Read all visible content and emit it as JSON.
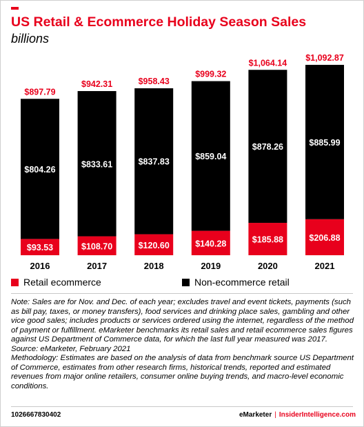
{
  "header": {
    "title": "US Retail & Ecommerce Holiday Season Sales",
    "subtitle": "billions"
  },
  "colors": {
    "accent": "#e8001c",
    "non_ecommerce": "#000000"
  },
  "chart_data": {
    "type": "bar",
    "stacked": true,
    "title": "US Retail & Ecommerce Holiday Season Sales",
    "ylabel": "billions",
    "categories": [
      "2016",
      "2017",
      "2018",
      "2019",
      "2020",
      "2021"
    ],
    "series": [
      {
        "name": "Retail ecommerce",
        "color": "#e8001c",
        "values": [
          93.53,
          108.7,
          120.6,
          140.28,
          185.88,
          206.88
        ],
        "labels": [
          "$93.53",
          "$108.70",
          "$120.60",
          "$140.28",
          "$185.88",
          "$206.88"
        ]
      },
      {
        "name": "Non-ecommerce retail",
        "color": "#000000",
        "values": [
          804.26,
          833.61,
          837.83,
          859.04,
          878.26,
          885.99
        ],
        "labels": [
          "$804.26",
          "$833.61",
          "$837.83",
          "$859.04",
          "$878.26",
          "$885.99"
        ]
      }
    ],
    "totals": [
      897.79,
      942.31,
      958.43,
      999.32,
      1064.14,
      1092.87
    ],
    "total_labels": [
      "$897.79",
      "$942.31",
      "$958.43",
      "$999.32",
      "$1,064.14",
      "$1,092.87"
    ],
    "ylim": [
      0,
      1092.87
    ],
    "grid": false,
    "legend_position": "bottom-left"
  },
  "legend": {
    "items": [
      "Retail ecommerce",
      "Non-ecommerce retail"
    ]
  },
  "notes": {
    "note": "Note: Sales are for Nov. and Dec. of each year; excludes travel and event tickets, payments (such as bill pay, taxes, or money transfers), food services and drinking place sales, gambling and other vice good sales; includes products or services ordered using the internet, regardless of the method of payment or fulfillment. eMarketer benchmarks its retail sales and retail ecommerce sales figures against US Department of Commerce data, for which the last full year measured was 2017.",
    "source": "Source: eMarketer, February 2021",
    "methodology": "Methodology: Estimates are based on the analysis of data from benchmark source US Department of Commerce, estimates from other research firms, historical trends, reported and estimated revenues from major online retailers, consumer online buying trends, and macro-level economic conditions."
  },
  "footer": {
    "id": "1026667830402",
    "brand_left": "eMarketer",
    "separator": "|",
    "brand_right": "InsiderIntelligence.com"
  }
}
